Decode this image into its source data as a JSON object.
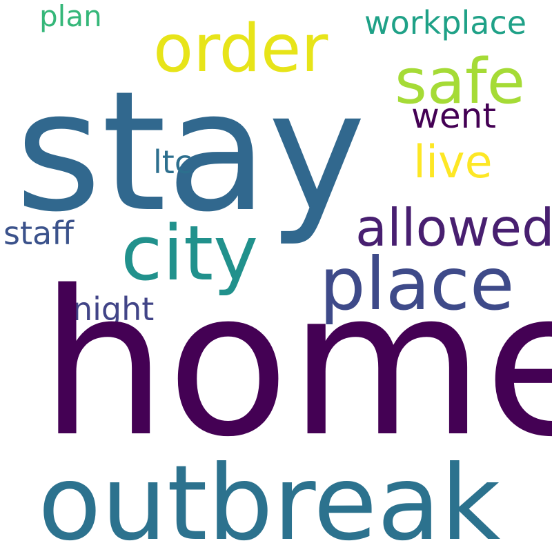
{
  "colors": {
    "background": "#ffffff"
  },
  "words": {
    "stay": {
      "text": "stay",
      "color": "#31688e"
    },
    "home": {
      "text": "home",
      "color": "#440154"
    },
    "outbreak": {
      "text": "outbreak",
      "color": "#2c728e"
    },
    "order": {
      "text": "order",
      "color": "#e7e419"
    },
    "safe": {
      "text": "safe",
      "color": "#a5db36"
    },
    "city": {
      "text": "city",
      "color": "#21918c"
    },
    "place": {
      "text": "place",
      "color": "#3e4a89"
    },
    "allowed": {
      "text": "allowed",
      "color": "#481f70"
    },
    "workplace": {
      "text": "workplace",
      "color": "#1fa187"
    },
    "live": {
      "text": "live",
      "color": "#fde725"
    },
    "went": {
      "text": "went",
      "color": "#440154"
    },
    "night": {
      "text": "night",
      "color": "#414487"
    },
    "staff": {
      "text": "staff",
      "color": "#3b528b"
    },
    "ltc": {
      "text": "ltc",
      "color": "#2d6f8e"
    },
    "plan": {
      "text": "plan",
      "color": "#35b779"
    }
  }
}
